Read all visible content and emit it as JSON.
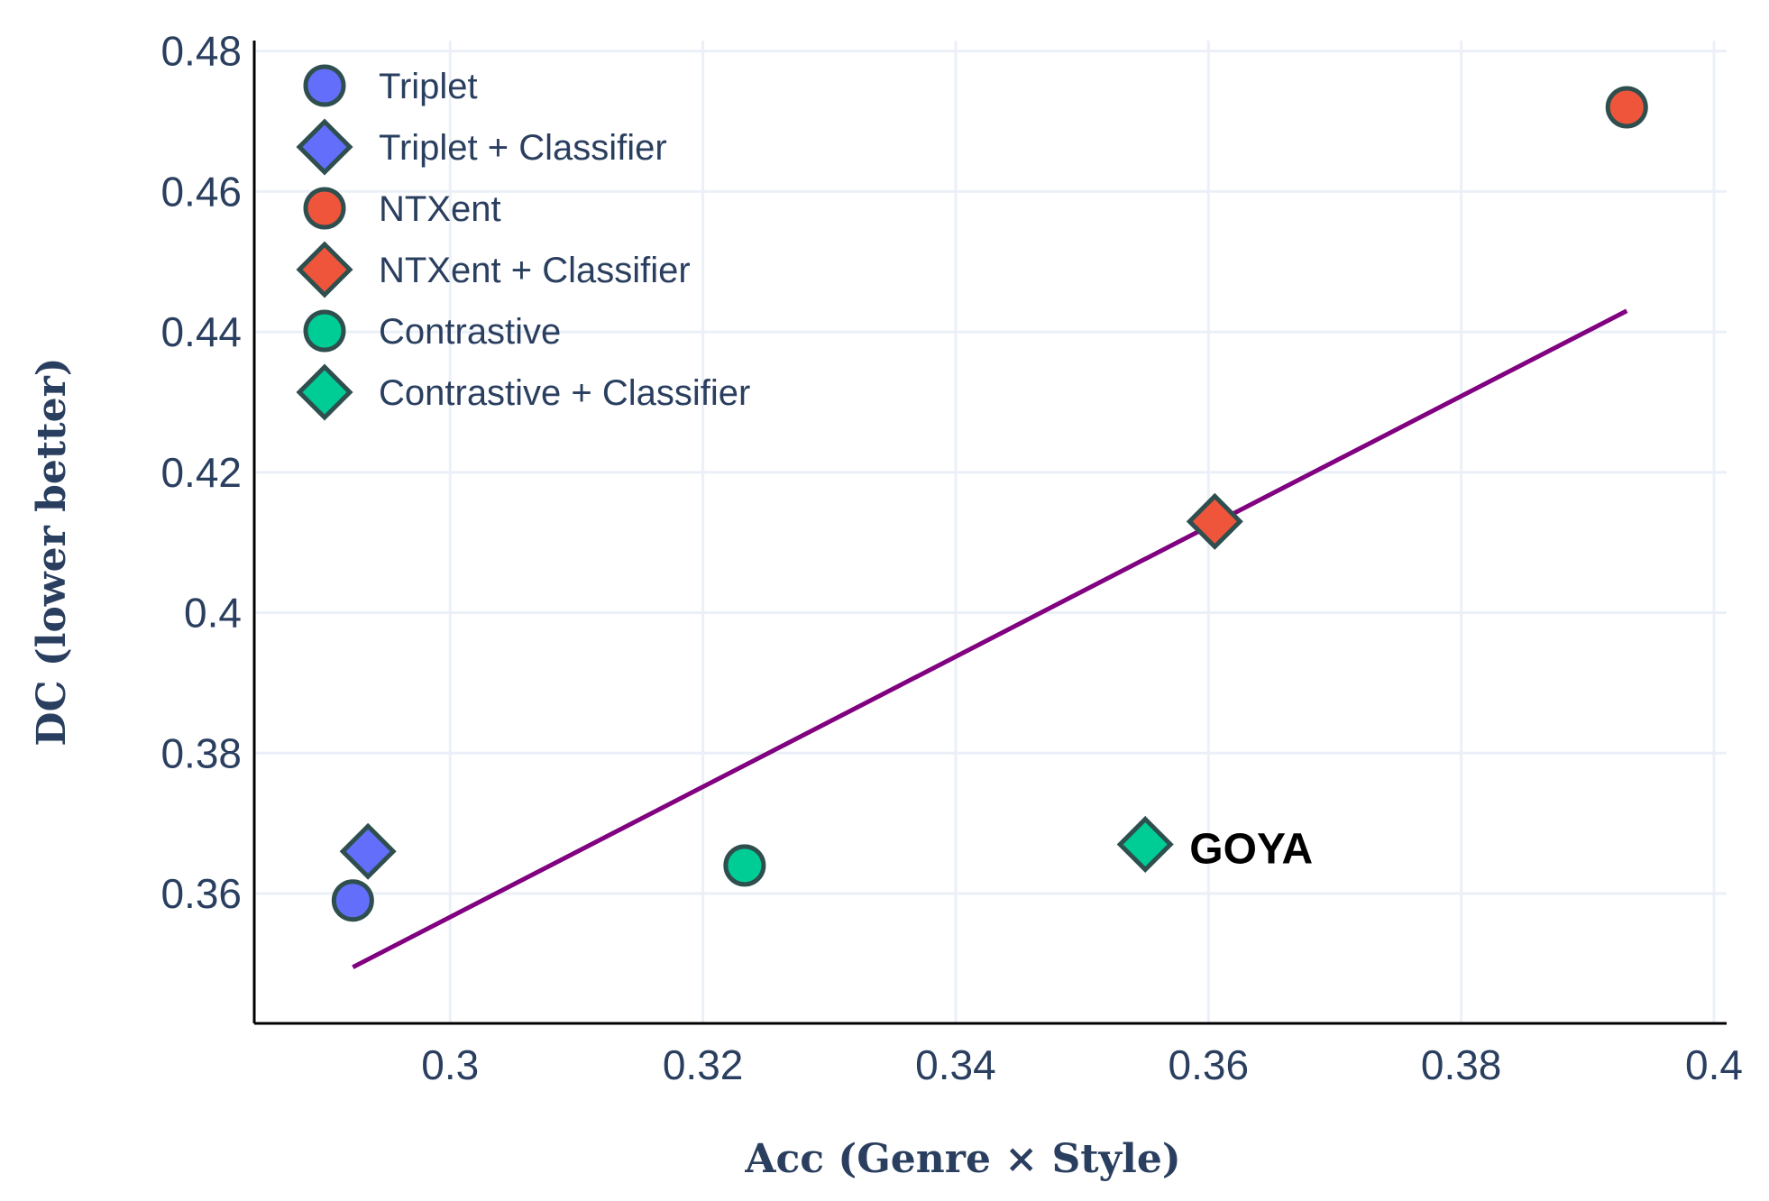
{
  "chart_data": {
    "type": "scatter",
    "title": "",
    "xlabel": "Acc (Genre × Style)",
    "ylabel": "DC (lower better)",
    "xlim": [
      0.2845,
      0.401
    ],
    "ylim": [
      0.3415,
      0.4815
    ],
    "xticks": [
      0.3,
      0.32,
      0.34,
      0.36,
      0.38,
      0.4
    ],
    "xtick_labels": [
      "0.3",
      "0.32",
      "0.34",
      "0.36",
      "0.38",
      "0.4"
    ],
    "yticks": [
      0.36,
      0.38,
      0.4,
      0.42,
      0.44,
      0.46,
      0.48
    ],
    "ytick_labels": [
      "0.36",
      "0.38",
      "0.4",
      "0.42",
      "0.44",
      "0.46",
      "0.48"
    ],
    "grid": true,
    "legend_position": "top-left",
    "marker_edge_color": "#2f4f4f",
    "series": [
      {
        "name": "Triplet",
        "marker": "circle",
        "color": "#636efa",
        "x": [
          0.2923
        ],
        "y": [
          0.359
        ]
      },
      {
        "name": "Triplet + Classifier",
        "marker": "diamond",
        "color": "#636efa",
        "x": [
          0.2935
        ],
        "y": [
          0.366
        ]
      },
      {
        "name": "NTXent",
        "marker": "circle",
        "color": "#ef553b",
        "x": [
          0.3931
        ],
        "y": [
          0.472
        ]
      },
      {
        "name": "NTXent + Classifier",
        "marker": "diamond",
        "color": "#ef553b",
        "x": [
          0.3605
        ],
        "y": [
          0.413
        ]
      },
      {
        "name": "Contrastive",
        "marker": "circle",
        "color": "#00cc96",
        "x": [
          0.3233
        ],
        "y": [
          0.364
        ]
      },
      {
        "name": "Contrastive + Classifier",
        "marker": "diamond",
        "color": "#00cc96",
        "x": [
          0.355
        ],
        "y": [
          0.367
        ]
      }
    ],
    "trendline": {
      "color": "#800080",
      "x": [
        0.2923,
        0.3931
      ],
      "y": [
        0.3495,
        0.443
      ]
    },
    "annotations": [
      {
        "text": "GOYA",
        "x": 0.3585,
        "y": 0.3665
      }
    ]
  }
}
